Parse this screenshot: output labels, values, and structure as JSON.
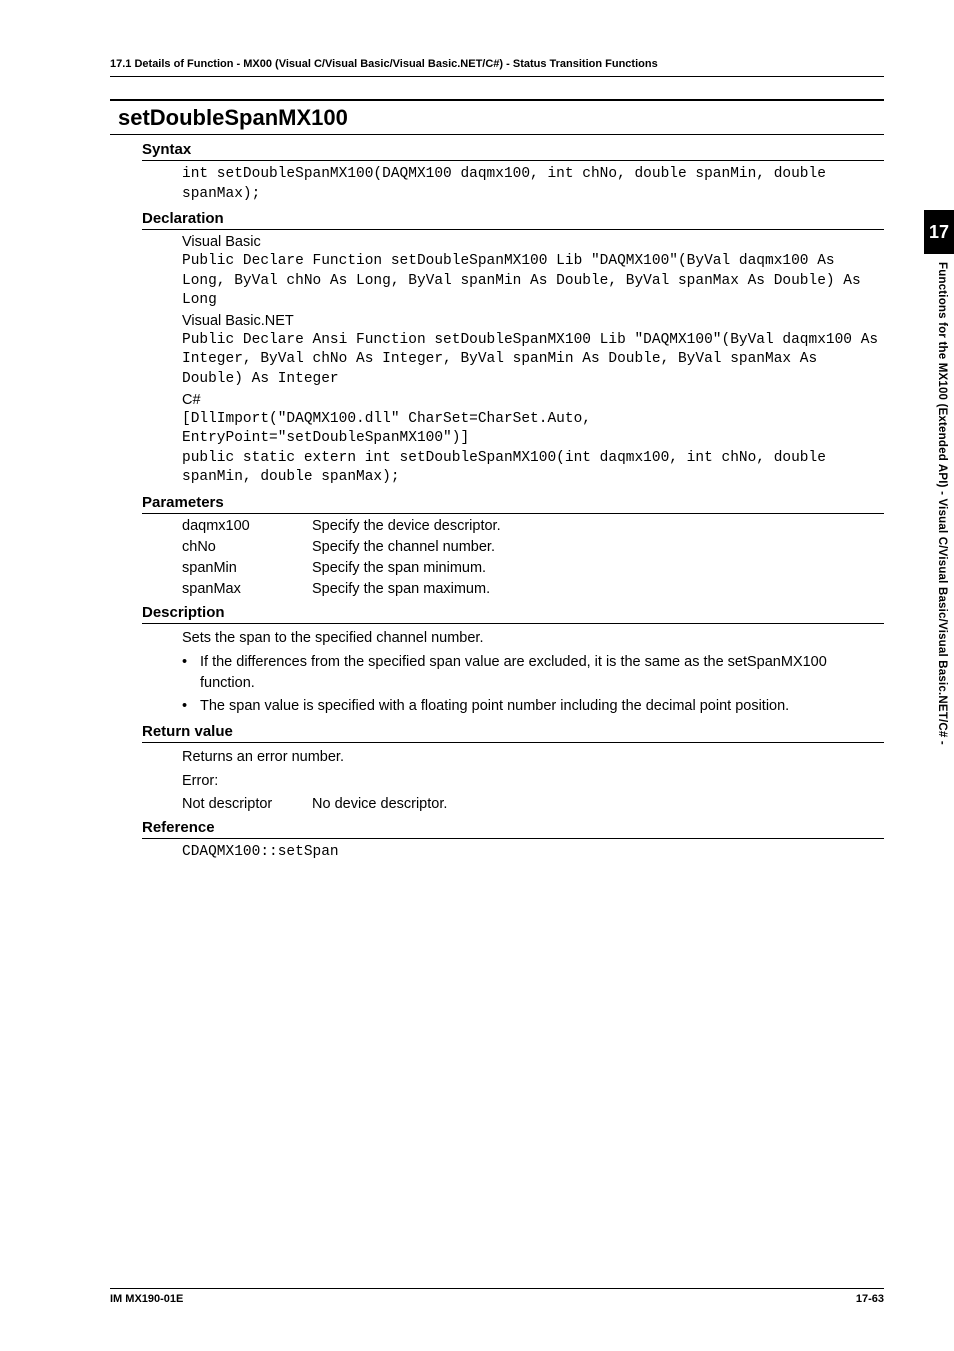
{
  "running_header": "17.1  Details of  Function - MX00 (Visual C/Visual Basic/Visual Basic.NET/C#) - Status Transition Functions",
  "func_title": "setDoubleSpanMX100",
  "syntax": {
    "heading": "Syntax",
    "code": "int setDoubleSpanMX100(DAQMX100 daqmx100, int chNo, double spanMin, double spanMax);"
  },
  "declaration": {
    "heading": "Declaration",
    "vb_label": "Visual Basic",
    "vb_code": "Public Declare Function setDoubleSpanMX100 Lib \"DAQMX100\"(ByVal daqmx100 As Long, ByVal chNo As Long, ByVal spanMin As Double, ByVal spanMax As Double) As Long",
    "vbnet_label": "Visual Basic.NET",
    "vbnet_code": "Public Declare Ansi Function setDoubleSpanMX100 Lib \"DAQMX100\"(ByVal daqmx100 As Integer, ByVal chNo As Integer, ByVal spanMin As Double, ByVal spanMax As Double) As Integer",
    "cs_label": "C#",
    "cs_code": "[DllImport(\"DAQMX100.dll\" CharSet=CharSet.Auto, EntryPoint=\"setDoubleSpanMX100\")]\npublic static extern int setDoubleSpanMX100(int daqmx100, int chNo, double spanMin, double spanMax);"
  },
  "parameters": {
    "heading": "Parameters",
    "rows": [
      {
        "name": "daqmx100",
        "desc": "Specify the device descriptor."
      },
      {
        "name": "chNo",
        "desc": "Specify the channel number."
      },
      {
        "name": "spanMin",
        "desc": "Specify the span minimum."
      },
      {
        "name": "spanMax",
        "desc": "Specify the span maximum."
      }
    ]
  },
  "description": {
    "heading": "Description",
    "intro": "Sets the span to the specified channel number.",
    "bullets": [
      "If the differences from the specified span value are excluded, it is the same as the setSpanMX100 function.",
      "The span value is specified with a floating point number including the decimal point position."
    ]
  },
  "return": {
    "heading": "Return value",
    "line1": "Returns an error number.",
    "line2": "Error:",
    "nd_name": "Not descriptor",
    "nd_desc": "No device descriptor."
  },
  "reference": {
    "heading": "Reference",
    "code": "CDAQMX100::setSpan"
  },
  "side": {
    "tab": "17",
    "label": "Functions for the MX100 (Extended API)  -  Visual C/Visual Basic/Visual Basic.NET/C#  -"
  },
  "footer": {
    "left": "IM MX190-01E",
    "right": "17-63"
  },
  "bullet_char": "•"
}
